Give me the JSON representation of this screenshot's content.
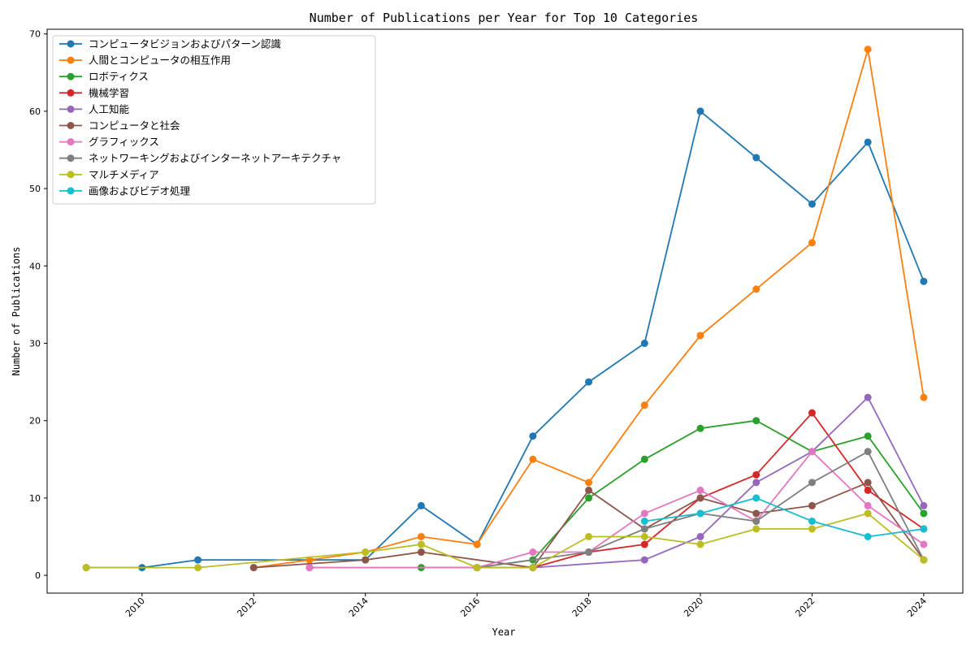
{
  "chart_data": {
    "type": "line",
    "title": "Number of Publications per Year for Top 10 Categories",
    "xlabel": "Year",
    "ylabel": "Number of Publications",
    "xlim": [
      2008.3,
      2024.7
    ],
    "ylim": [
      -2.3,
      70.6
    ],
    "xticks": [
      2010,
      2012,
      2014,
      2016,
      2018,
      2020,
      2022,
      2024
    ],
    "yticks": [
      0,
      10,
      20,
      30,
      40,
      50,
      60,
      70
    ],
    "grid": false,
    "legend_position": "top-left",
    "marker": "circle",
    "series": [
      {
        "name": "コンピュータビジョンおよびパターン認識",
        "color": "#1f77b4",
        "x": [
          2009,
          2010,
          2011,
          2014,
          2015,
          2016,
          2017,
          2018,
          2019,
          2020,
          2021,
          2022,
          2023,
          2024
        ],
        "y": [
          1,
          1,
          2,
          2,
          9,
          4,
          18,
          25,
          30,
          60,
          54,
          48,
          56,
          38
        ]
      },
      {
        "name": "人間とコンピュータの相互作用",
        "color": "#ff7f0e",
        "x": [
          2012,
          2013,
          2014,
          2015,
          2016,
          2017,
          2018,
          2019,
          2020,
          2021,
          2022,
          2023,
          2024
        ],
        "y": [
          1,
          2,
          3,
          5,
          4,
          15,
          12,
          22,
          31,
          37,
          43,
          68,
          23
        ]
      },
      {
        "name": "ロボティクス",
        "color": "#2ca02c",
        "x": [
          2015,
          2016,
          2017,
          2018,
          2019,
          2020,
          2021,
          2022,
          2023,
          2024
        ],
        "y": [
          1,
          1,
          2,
          10,
          15,
          19,
          20,
          16,
          18,
          8
        ]
      },
      {
        "name": "機械学習",
        "color": "#d62728",
        "x": [
          2016,
          2017,
          2018,
          2019,
          2020,
          2021,
          2022,
          2023,
          2024
        ],
        "y": [
          1,
          1,
          3,
          4,
          10,
          13,
          21,
          11,
          6
        ]
      },
      {
        "name": "人工知能",
        "color": "#9467bd",
        "x": [
          2013,
          2017,
          2019,
          2020,
          2021,
          2022,
          2023,
          2024
        ],
        "y": [
          1,
          1,
          2,
          5,
          12,
          16,
          23,
          9
        ]
      },
      {
        "name": "コンピュータと社会",
        "color": "#8c564b",
        "x": [
          2012,
          2014,
          2015,
          2017,
          2018,
          2019,
          2020,
          2021,
          2022,
          2023,
          2024
        ],
        "y": [
          1,
          2,
          3,
          1,
          11,
          6,
          10,
          8,
          9,
          12,
          2
        ]
      },
      {
        "name": "グラフィックス",
        "color": "#e377c2",
        "x": [
          2013,
          2016,
          2017,
          2018,
          2019,
          2020,
          2021,
          2022,
          2023,
          2024
        ],
        "y": [
          1,
          1,
          3,
          3,
          8,
          11,
          7,
          16,
          9,
          4
        ]
      },
      {
        "name": "ネットワーキングおよびインターネットアーキテクチャ",
        "color": "#7f7f7f",
        "x": [
          2016,
          2018,
          2019,
          2020,
          2021,
          2022,
          2023,
          2024
        ],
        "y": [
          1,
          3,
          6,
          8,
          7,
          12,
          16,
          2
        ]
      },
      {
        "name": "マルチメディア",
        "color": "#bcbd22",
        "x": [
          2009,
          2011,
          2014,
          2015,
          2016,
          2017,
          2018,
          2019,
          2020,
          2021,
          2022,
          2023,
          2024
        ],
        "y": [
          1,
          1,
          3,
          4,
          1,
          1,
          5,
          5,
          4,
          6,
          6,
          8,
          2
        ]
      },
      {
        "name": "画像およびビデオ処理",
        "color": "#17becf",
        "x": [
          2019,
          2020,
          2021,
          2022,
          2023,
          2024
        ],
        "y": [
          7,
          8,
          10,
          7,
          5,
          6
        ]
      }
    ]
  }
}
